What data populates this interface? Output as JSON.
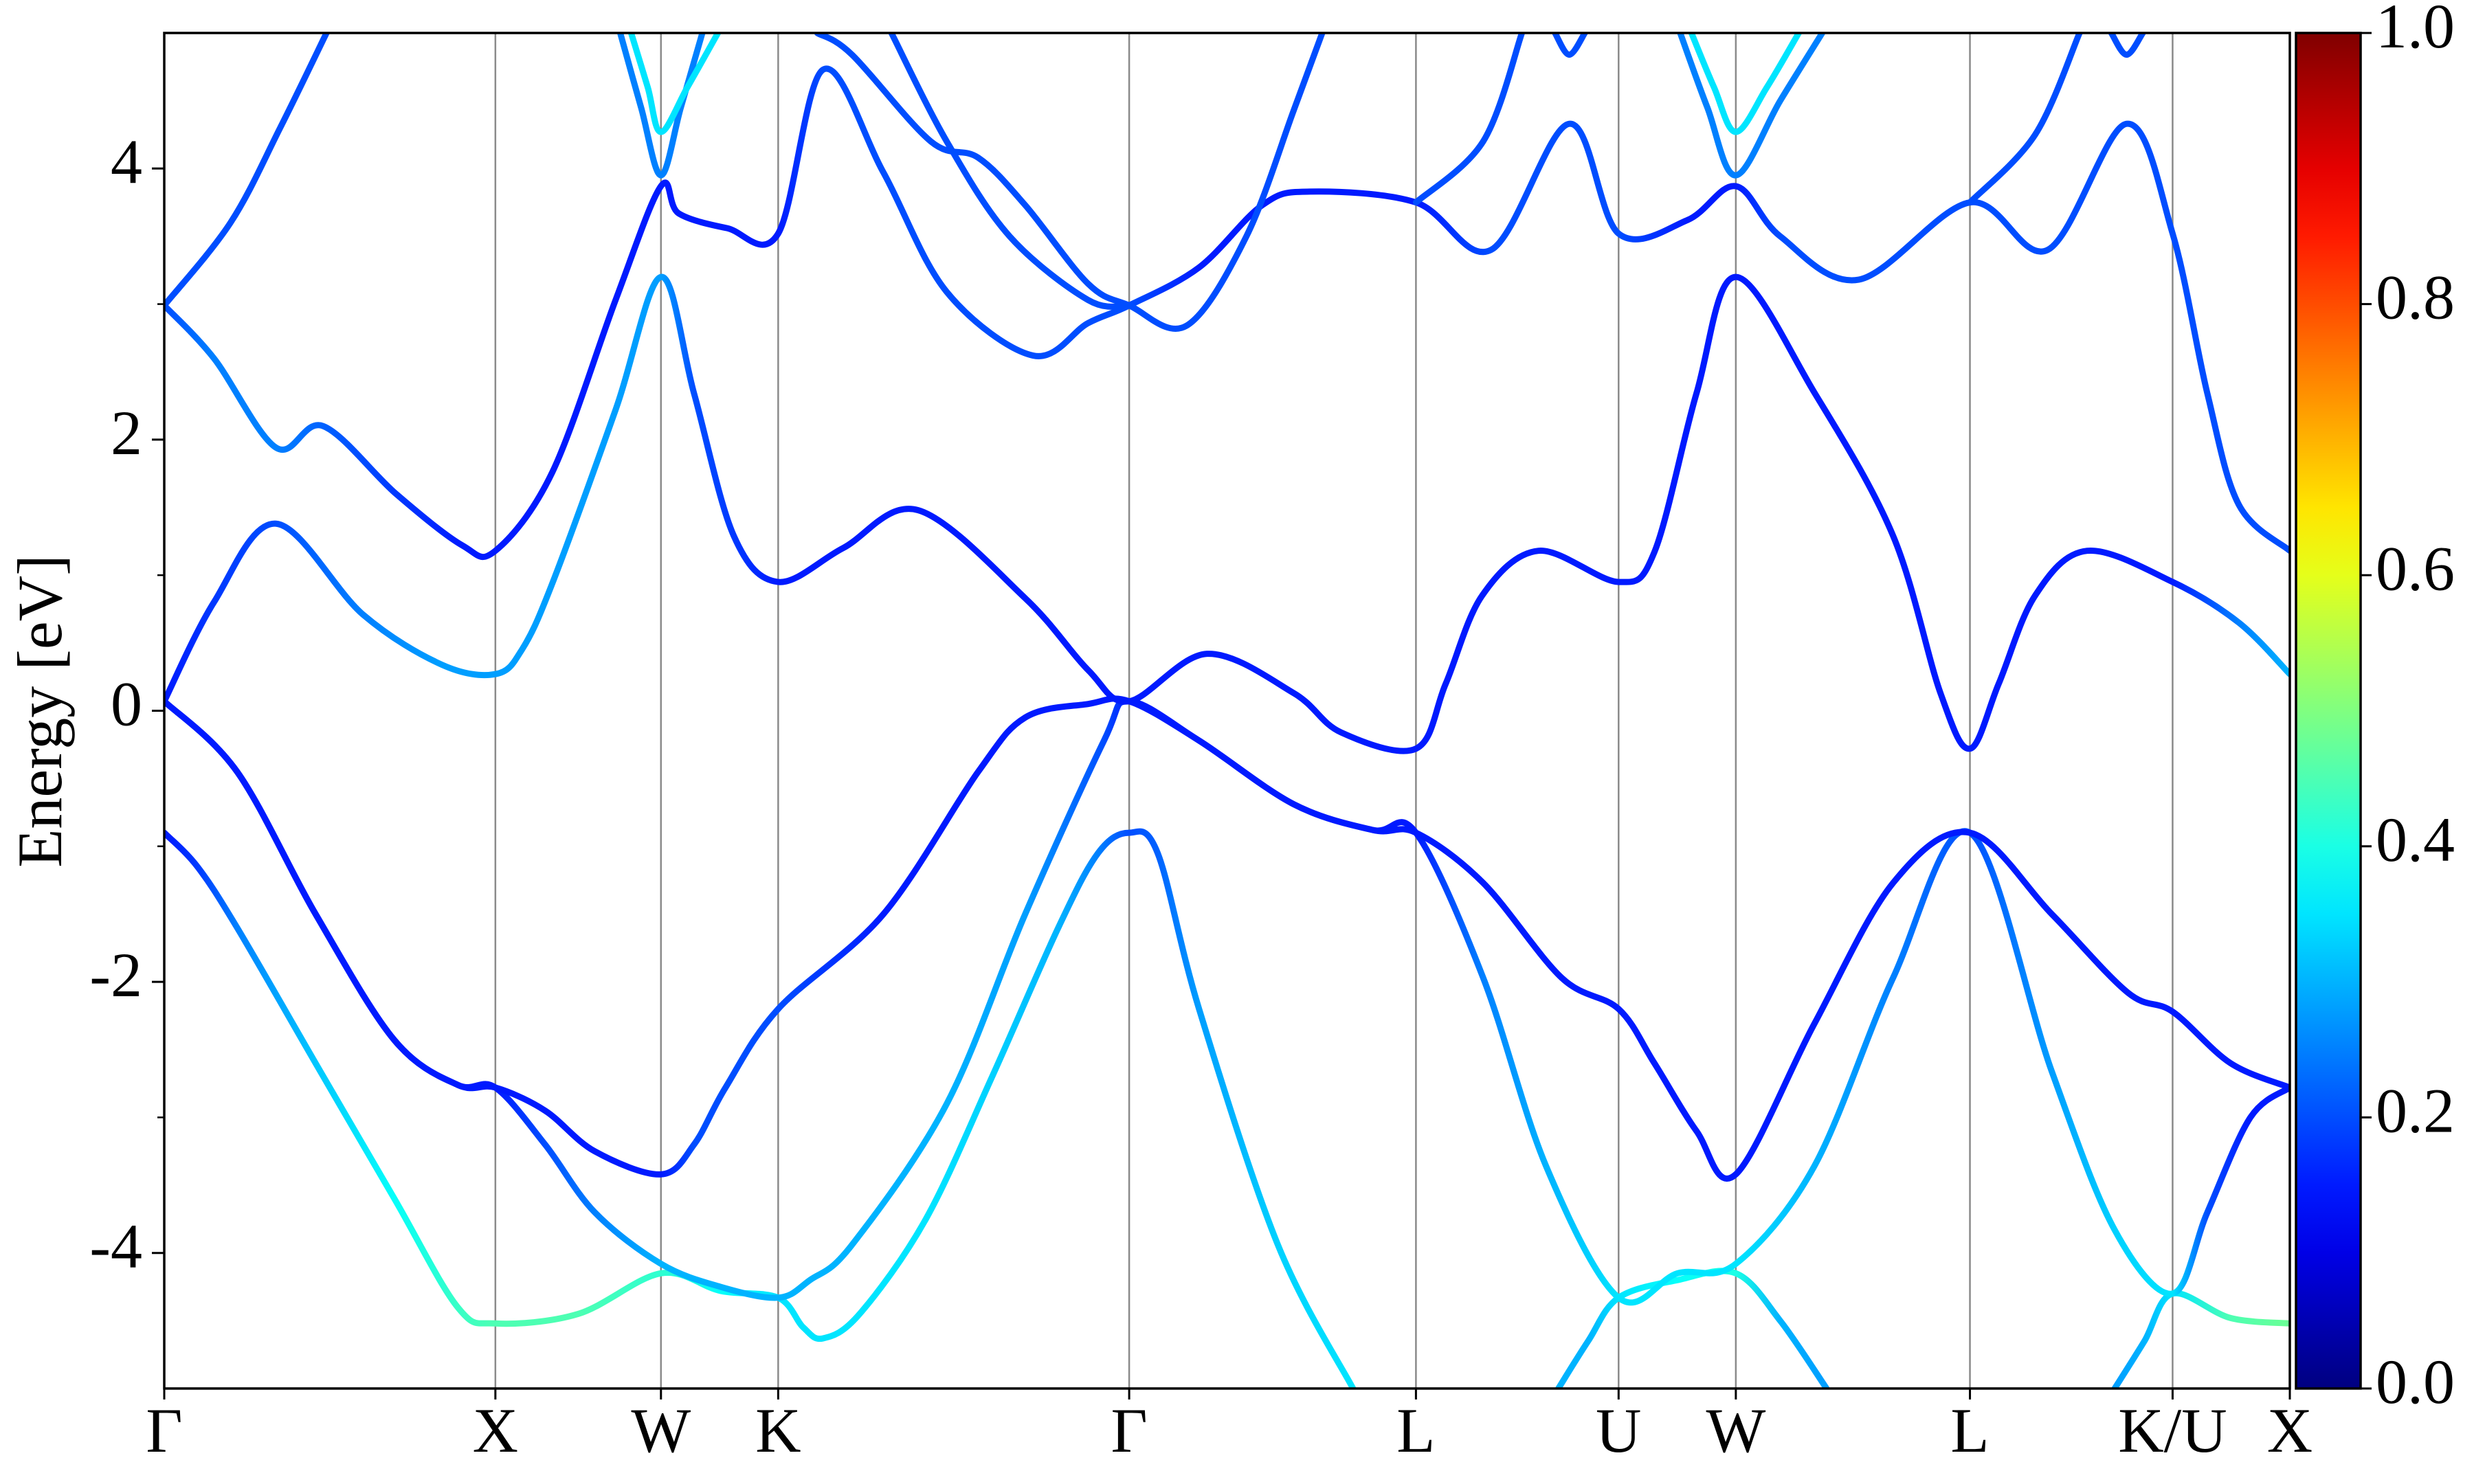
{
  "chart_data": {
    "type": "band",
    "ylabel": "Energy [eV]",
    "xlim": [
      0,
      6.419
    ],
    "ylim": [
      -5,
      5
    ],
    "xticks": [
      {
        "value": 0,
        "label": "Γ"
      },
      {
        "value": 1,
        "label": "X"
      },
      {
        "value": 1.5,
        "label": "W"
      },
      {
        "value": 1.854,
        "label": "K"
      },
      {
        "value": 2.914,
        "label": "Γ"
      },
      {
        "value": 3.78,
        "label": "L"
      },
      {
        "value": 4.392,
        "label": "U"
      },
      {
        "value": 4.746,
        "label": "W"
      },
      {
        "value": 5.453,
        "label": "L"
      },
      {
        "value": 6.065,
        "label": "K/U"
      },
      {
        "value": 6.419,
        "label": "X"
      }
    ],
    "yticks": [
      -4,
      -2,
      0,
      2,
      4
    ],
    "yminor": [
      -3,
      -1,
      1,
      3
    ],
    "grid": true,
    "colormap": "jet",
    "colorbar": {
      "lim": [
        0,
        1
      ],
      "ticks": [
        {
          "value": 0,
          "label": "0.0"
        },
        {
          "value": 0.2,
          "label": "0.2"
        },
        {
          "value": 0.4,
          "label": "0.4"
        },
        {
          "value": 0.6,
          "label": "0.6"
        },
        {
          "value": 0.8,
          "label": "0.8"
        },
        {
          "value": 1,
          "label": "1.0"
        }
      ]
    },
    "series": [
      {
        "x": [
          0,
          0.1,
          0.22,
          0.457,
          0.695,
          0.886,
          1,
          1.25,
          1.5,
          1.68,
          1.854,
          1.93,
          1.99,
          2.1,
          2.3,
          2.5,
          2.7,
          2.82,
          2.914,
          3.0,
          3.125,
          3.363,
          3.59,
          null,
          4.21,
          4.3,
          4.392,
          4.57,
          4.746,
          4.88,
          5.02,
          null,
          5.89,
          5.98,
          6.065,
          6.24,
          6.419
        ],
        "values": [
          -0.9,
          -1.15,
          -1.6,
          -2.6,
          -3.6,
          -4.4,
          -4.52,
          -4.45,
          -4.15,
          -4.28,
          -4.33,
          -4.55,
          -4.63,
          -4.45,
          -3.75,
          -2.7,
          -1.6,
          -1.05,
          -0.9,
          -1.05,
          -2.2,
          -3.94,
          -5,
          null,
          -5,
          -4.65,
          -4.33,
          -4.2,
          -4.15,
          -4.5,
          -5,
          null,
          -5,
          -4.65,
          -4.3,
          -4.48,
          -4.52
        ],
        "weights": [
          0.15,
          0.18,
          0.25,
          0.32,
          0.38,
          0.43,
          0.45,
          0.45,
          0.42,
          0.38,
          0.35,
          0.35,
          0.35,
          0.35,
          0.35,
          0.33,
          0.3,
          0.25,
          0.2,
          0.22,
          0.28,
          0.33,
          0.35,
          null,
          0.3,
          0.3,
          0.35,
          0.38,
          0.4,
          0.3,
          0.28,
          null,
          0.28,
          0.3,
          0.35,
          0.45,
          0.48
        ]
      },
      {
        "x": [
          0,
          0.22,
          0.457,
          0.695,
          0.886,
          1,
          1.15,
          1.3,
          1.5,
          1.68,
          1.854,
          1.95,
          2.077,
          2.363,
          2.6,
          2.838,
          2.914,
          3.125,
          3.411,
          3.65,
          3.78,
          3.983,
          4.173,
          4.392,
          4.57,
          4.746,
          4.983,
          5.221,
          5.453,
          5.7,
          5.89,
          6.065,
          6.17,
          6.3,
          6.419
        ],
        "values": [
          0.07,
          -0.45,
          -1.5,
          -2.43,
          -2.76,
          -2.78,
          -3.2,
          -3.7,
          -4.08,
          -4.25,
          -4.33,
          -4.2,
          -3.94,
          -2.9,
          -1.5,
          -0.22,
          0.07,
          -0.22,
          -0.69,
          -0.88,
          -0.9,
          -1.97,
          -3.36,
          -4.33,
          -4.15,
          -4.08,
          -3.36,
          -1.97,
          -0.9,
          -2.66,
          -3.83,
          -4.3,
          -3.7,
          -3.0,
          -2.78
        ],
        "weights": [
          0.15,
          0.15,
          0.15,
          0.15,
          0.15,
          0.15,
          0.2,
          0.25,
          0.3,
          0.3,
          0.3,
          0.3,
          0.3,
          0.3,
          0.28,
          0.2,
          0.15,
          0.15,
          0.15,
          0.15,
          0.15,
          0.25,
          0.3,
          0.35,
          0.35,
          0.35,
          0.3,
          0.25,
          0.2,
          0.28,
          0.33,
          0.35,
          0.2,
          0.15,
          0.15
        ]
      },
      {
        "x": [
          0,
          0.15,
          0.338,
          0.6,
          0.838,
          1,
          1.08,
          1.172,
          1.363,
          1.5,
          1.6,
          1.72,
          1.854,
          2.05,
          2.276,
          2.6,
          2.79,
          2.914,
          3.149,
          3.411,
          3.554,
          3.78,
          3.87,
          3.98,
          4.15,
          4.392,
          4.5,
          4.627,
          4.746,
          4.985,
          5.221,
          5.364,
          5.453,
          5.54,
          5.65,
          5.807,
          6.065,
          6.265,
          6.419
        ],
        "values": [
          0.07,
          0.8,
          1.38,
          0.71,
          0.34,
          0.27,
          0.45,
          0.94,
          2.22,
          3.2,
          2.34,
          1.29,
          0.95,
          1.2,
          1.48,
          0.83,
          0.3,
          0.07,
          0.42,
          0.13,
          -0.16,
          -0.28,
          0.2,
          0.85,
          1.18,
          0.95,
          1.17,
          2.34,
          3.2,
          2.34,
          1.29,
          0.13,
          -0.28,
          0.2,
          0.85,
          1.18,
          0.95,
          0.65,
          0.27
        ],
        "weights": [
          0.15,
          0.18,
          0.2,
          0.25,
          0.28,
          0.28,
          0.28,
          0.28,
          0.28,
          0.28,
          0.2,
          0.18,
          0.15,
          0.15,
          0.15,
          0.15,
          0.15,
          0.15,
          0.15,
          0.15,
          0.15,
          0.15,
          0.15,
          0.15,
          0.15,
          0.15,
          0.15,
          0.15,
          0.15,
          0.15,
          0.15,
          0.15,
          0.15,
          0.15,
          0.15,
          0.15,
          0.15,
          0.25,
          0.3
        ]
      },
      {
        "x": [
          0,
          0.15,
          0.338,
          0.48,
          0.7,
          0.9,
          1,
          1.172,
          1.363,
          1.5,
          1.553,
          1.7,
          1.854,
          1.99,
          2.172,
          2.363,
          2.624,
          2.79,
          2.914,
          3.125,
          3.316,
          3.459,
          3.78,
          4.007,
          4.243,
          4.392,
          4.6,
          4.746,
          4.88,
          5.117,
          5.453,
          5.688,
          5.926,
          6.065,
          6.17,
          6.265,
          6.419
        ],
        "values": [
          2.99,
          2.6,
          1.94,
          2.1,
          1.6,
          1.22,
          1.18,
          1.76,
          3.03,
          3.87,
          3.67,
          3.56,
          3.52,
          4.73,
          3.97,
          3.09,
          2.62,
          2.86,
          2.99,
          3.27,
          3.73,
          3.83,
          3.75,
          3.4,
          4.33,
          3.52,
          3.62,
          3.87,
          3.5,
          3.18,
          3.75,
          3.4,
          4.33,
          3.52,
          2.34,
          1.52,
          1.18
        ],
        "weights": [
          0.2,
          0.25,
          0.25,
          0.22,
          0.18,
          0.15,
          0.15,
          0.15,
          0.15,
          0.15,
          0.15,
          0.15,
          0.15,
          0.2,
          0.2,
          0.2,
          0.2,
          0.2,
          0.2,
          0.15,
          0.15,
          0.15,
          0.15,
          0.2,
          0.2,
          0.2,
          0.15,
          0.15,
          0.2,
          0.2,
          0.2,
          0.2,
          0.2,
          0.2,
          0.2,
          0.2,
          0.2
        ]
      },
      {
        "x": [
          0,
          0.2,
          0.35,
          0.49,
          null,
          1.377,
          1.44,
          1.5,
          1.56,
          1.625,
          null,
          1.972,
          2.077,
          2.315,
          2.458,
          2.6,
          2.79,
          2.914,
          3.087,
          3.268,
          3.411,
          3.497,
          null,
          3.78,
          3.983,
          4.1,
          null,
          4.578,
          4.66,
          4.746,
          4.88,
          5.007,
          null,
          5.453,
          5.65,
          5.784
        ],
        "values": [
          2.99,
          3.6,
          4.3,
          5,
          null,
          5,
          4.45,
          3.95,
          4.45,
          5,
          null,
          5,
          4.84,
          4.2,
          4.08,
          3.73,
          3.15,
          2.99,
          2.84,
          3.5,
          4.43,
          5,
          null,
          3.75,
          4.2,
          5,
          null,
          5,
          4.45,
          3.95,
          4.5,
          5,
          null,
          3.75,
          4.25,
          5
        ],
        "weights": [
          0.2,
          0.2,
          0.2,
          0.2,
          null,
          0.25,
          0.25,
          0.25,
          0.25,
          0.25,
          null,
          0.2,
          0.2,
          0.2,
          0.2,
          0.2,
          0.2,
          0.2,
          0.2,
          0.2,
          0.2,
          0.2,
          null,
          0.2,
          0.2,
          0.2,
          null,
          0.25,
          0.25,
          0.25,
          0.25,
          0.25,
          null,
          0.2,
          0.2,
          0.2
        ]
      },
      {
        "x": [
          1.41,
          1.46,
          1.5,
          1.58,
          1.672,
          null,
          2.196,
          2.363,
          2.553,
          2.79,
          2.914,
          null,
          4.2,
          4.243,
          4.29,
          null,
          4.612,
          4.68,
          4.746,
          4.84,
          4.936,
          null,
          5.88,
          5.926,
          5.975
        ],
        "values": [
          5,
          4.6,
          4.27,
          4.6,
          5,
          null,
          5,
          4.2,
          3.5,
          3.03,
          2.99,
          null,
          5,
          4.84,
          5,
          null,
          5,
          4.6,
          4.27,
          4.6,
          5,
          null,
          5,
          4.84,
          5
        ],
        "weights": [
          0.35,
          0.35,
          0.35,
          0.35,
          0.35,
          null,
          0.2,
          0.2,
          0.2,
          0.2,
          0.2,
          null,
          0.2,
          0.2,
          0.2,
          null,
          0.35,
          0.35,
          0.35,
          0.35,
          0.35,
          null,
          0.2,
          0.2,
          0.2
        ]
      },
      {
        "x": [
          0,
          0.22,
          0.457,
          0.695,
          0.886,
          1,
          1.15,
          1.3,
          1.5,
          1.6,
          1.695,
          1.854,
          2.172,
          2.458,
          2.6,
          2.79,
          2.914,
          3.125,
          3.411,
          3.65,
          3.78,
          3.983,
          4.22,
          4.392,
          4.5,
          4.627,
          4.746,
          4.983,
          5.221,
          5.453,
          5.7,
          5.93,
          6.065,
          6.24,
          6.419
        ],
        "values": [
          0.07,
          -0.45,
          -1.5,
          -2.43,
          -2.76,
          -2.78,
          -2.95,
          -3.25,
          -3.42,
          -3.2,
          -2.78,
          -2.2,
          -1.5,
          -0.45,
          -0.05,
          0.05,
          0.07,
          -0.22,
          -0.69,
          -0.88,
          -0.9,
          -1.27,
          -1.97,
          -2.2,
          -2.6,
          -3.1,
          -3.42,
          -2.31,
          -1.27,
          -0.9,
          -1.5,
          -2.08,
          -2.22,
          -2.6,
          -2.78
        ],
        "weights": [
          0.15,
          0.15,
          0.15,
          0.15,
          0.15,
          0.15,
          0.15,
          0.15,
          0.15,
          0.2,
          0.2,
          0.2,
          0.15,
          0.15,
          0.15,
          0.15,
          0.15,
          0.15,
          0.15,
          0.15,
          0.15,
          0.15,
          0.15,
          0.15,
          0.15,
          0.15,
          0.15,
          0.15,
          0.15,
          0.15,
          0.15,
          0.15,
          0.15,
          0.15,
          0.15
        ]
      }
    ]
  }
}
